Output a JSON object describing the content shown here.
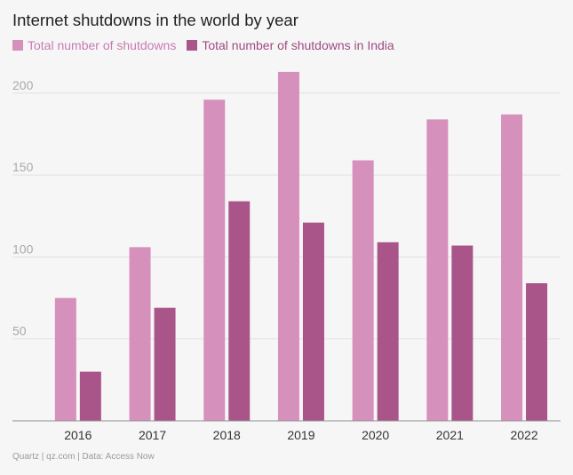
{
  "title": "Internet shutdowns in the world by year",
  "footer": "Quartz | qz.com | Data: Access Now",
  "colors": {
    "world": "#d690bc",
    "india": "#a9558a",
    "world_text": "#c87bb0",
    "india_text": "#9d4a80",
    "grid": "#e2dfe1",
    "axis": "#8e8e8e",
    "tick_text": "#aaaaaa",
    "category_text": "#333333"
  },
  "chart_data": {
    "type": "bar",
    "title": "Internet shutdowns in the world by year",
    "categories": [
      "2016",
      "2017",
      "2018",
      "2019",
      "2020",
      "2021",
      "2022"
    ],
    "series": [
      {
        "name": "Total number of shutdowns",
        "values": [
          75,
          106,
          196,
          213,
          159,
          184,
          187
        ]
      },
      {
        "name": "Total number of shutdowns in India",
        "values": [
          30,
          69,
          134,
          121,
          109,
          107,
          84
        ]
      }
    ],
    "yticks": [
      "50",
      "100",
      "150",
      "200"
    ],
    "ytick_values": [
      50,
      100,
      150,
      200
    ],
    "ylim": [
      0,
      220
    ],
    "xlabel": "",
    "ylabel": "",
    "legend": "top-left",
    "grid": true
  }
}
